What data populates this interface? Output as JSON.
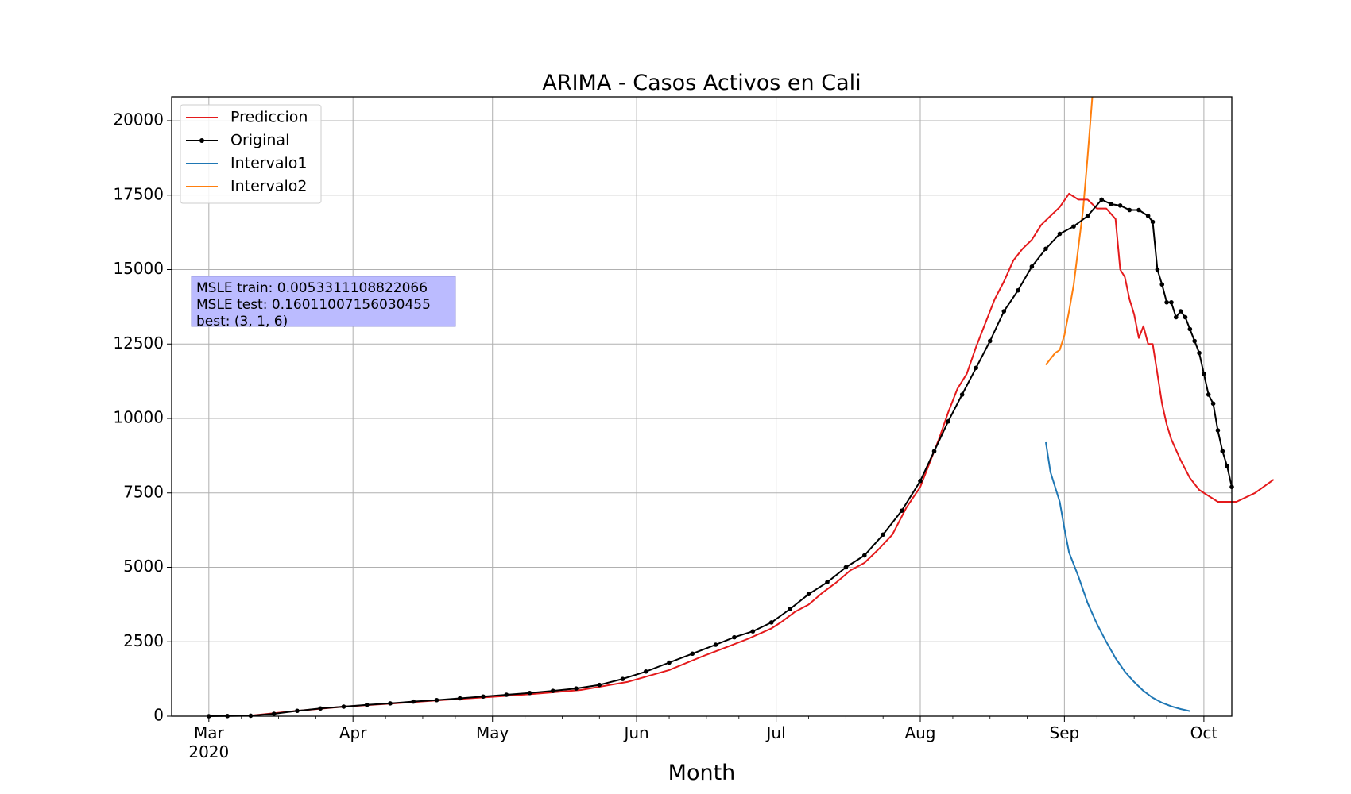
{
  "chart_data": {
    "type": "line",
    "title": "ARIMA - Casos Activos en Cali",
    "xlabel": "Month",
    "ylabel": "",
    "ylim": [
      0,
      20800
    ],
    "xlim": [
      "2020-02-22",
      "2020-10-07"
    ],
    "yticks": [
      0,
      2500,
      5000,
      7500,
      10000,
      12500,
      15000,
      17500,
      20000
    ],
    "xticks": [
      {
        "date": "2020-03-01",
        "label": "Mar",
        "sublabel": "2020"
      },
      {
        "date": "2020-04-01",
        "label": "Apr"
      },
      {
        "date": "2020-05-01",
        "label": "May"
      },
      {
        "date": "2020-06-01",
        "label": "Jun"
      },
      {
        "date": "2020-07-01",
        "label": "Jul"
      },
      {
        "date": "2020-08-01",
        "label": "Aug"
      },
      {
        "date": "2020-09-01",
        "label": "Sep"
      },
      {
        "date": "2020-10-01",
        "label": "Oct"
      }
    ],
    "grid": true,
    "legend": "top-left",
    "annotation": {
      "lines": [
        "MSLE train: 0.0053311108822066",
        "MSLE test: 0.16011007156030455",
        "best: (3, 1, 6)"
      ],
      "color": "#bbbbff"
    },
    "series": [
      {
        "name": "Prediccion",
        "color": "#e41a1c",
        "marker": false,
        "points": [
          [
            "2020-03-10",
            20
          ],
          [
            "2020-03-20",
            180
          ],
          [
            "2020-03-30",
            320
          ],
          [
            "2020-04-10",
            430
          ],
          [
            "2020-04-20",
            540
          ],
          [
            "2020-04-30",
            640
          ],
          [
            "2020-05-10",
            750
          ],
          [
            "2020-05-20",
            880
          ],
          [
            "2020-05-30",
            1150
          ],
          [
            "2020-06-08",
            1550
          ],
          [
            "2020-06-15",
            2000
          ],
          [
            "2020-06-20",
            2300
          ],
          [
            "2020-06-25",
            2600
          ],
          [
            "2020-06-30",
            2950
          ],
          [
            "2020-07-02",
            3150
          ],
          [
            "2020-07-05",
            3500
          ],
          [
            "2020-07-08",
            3750
          ],
          [
            "2020-07-11",
            4150
          ],
          [
            "2020-07-14",
            4500
          ],
          [
            "2020-07-17",
            4900
          ],
          [
            "2020-07-20",
            5150
          ],
          [
            "2020-07-23",
            5600
          ],
          [
            "2020-07-26",
            6100
          ],
          [
            "2020-07-29",
            7000
          ],
          [
            "2020-08-01",
            7700
          ],
          [
            "2020-08-03",
            8500
          ],
          [
            "2020-08-05",
            9300
          ],
          [
            "2020-08-07",
            10200
          ],
          [
            "2020-08-09",
            11000
          ],
          [
            "2020-08-11",
            11500
          ],
          [
            "2020-08-13",
            12400
          ],
          [
            "2020-08-15",
            13200
          ],
          [
            "2020-08-17",
            14000
          ],
          [
            "2020-08-19",
            14600
          ],
          [
            "2020-08-21",
            15300
          ],
          [
            "2020-08-23",
            15700
          ],
          [
            "2020-08-25",
            16000
          ],
          [
            "2020-08-27",
            16500
          ],
          [
            "2020-08-29",
            16800
          ],
          [
            "2020-08-31",
            17100
          ],
          [
            "2020-09-02",
            17550
          ],
          [
            "2020-09-04",
            17350
          ],
          [
            "2020-09-06",
            17350
          ],
          [
            "2020-09-08",
            17050
          ],
          [
            "2020-09-10",
            17050
          ],
          [
            "2020-09-12",
            16700
          ],
          [
            "2020-09-13",
            15000
          ],
          [
            "2020-09-14",
            14750
          ],
          [
            "2020-09-15",
            14000
          ],
          [
            "2020-09-16",
            13500
          ],
          [
            "2020-09-17",
            12700
          ],
          [
            "2020-09-18",
            13100
          ],
          [
            "2020-09-19",
            12500
          ],
          [
            "2020-09-20",
            12500
          ],
          [
            "2020-09-21",
            11500
          ],
          [
            "2020-09-22",
            10500
          ],
          [
            "2020-09-23",
            9800
          ],
          [
            "2020-09-24",
            9300
          ],
          [
            "2020-09-26",
            8600
          ],
          [
            "2020-09-28",
            8000
          ],
          [
            "2020-09-30",
            7600
          ],
          [
            "2020-10-04",
            7200
          ],
          [
            "2020-10-08",
            7200
          ],
          [
            "2020-10-12",
            7500
          ],
          [
            "2020-10-16",
            7950
          ]
        ]
      },
      {
        "name": "Original",
        "color": "#000000",
        "marker": true,
        "points": [
          [
            "2020-03-01",
            0
          ],
          [
            "2020-03-05",
            5
          ],
          [
            "2020-03-10",
            15
          ],
          [
            "2020-03-15",
            80
          ],
          [
            "2020-03-20",
            180
          ],
          [
            "2020-03-25",
            260
          ],
          [
            "2020-03-30",
            320
          ],
          [
            "2020-04-04",
            380
          ],
          [
            "2020-04-09",
            430
          ],
          [
            "2020-04-14",
            490
          ],
          [
            "2020-04-19",
            540
          ],
          [
            "2020-04-24",
            600
          ],
          [
            "2020-04-29",
            660
          ],
          [
            "2020-05-04",
            720
          ],
          [
            "2020-05-09",
            780
          ],
          [
            "2020-05-14",
            850
          ],
          [
            "2020-05-19",
            930
          ],
          [
            "2020-05-24",
            1050
          ],
          [
            "2020-05-29",
            1250
          ],
          [
            "2020-06-03",
            1500
          ],
          [
            "2020-06-08",
            1800
          ],
          [
            "2020-06-13",
            2100
          ],
          [
            "2020-06-18",
            2400
          ],
          [
            "2020-06-22",
            2650
          ],
          [
            "2020-06-26",
            2850
          ],
          [
            "2020-06-30",
            3150
          ],
          [
            "2020-07-04",
            3600
          ],
          [
            "2020-07-08",
            4100
          ],
          [
            "2020-07-12",
            4500
          ],
          [
            "2020-07-16",
            5000
          ],
          [
            "2020-07-20",
            5400
          ],
          [
            "2020-07-24",
            6100
          ],
          [
            "2020-07-28",
            6900
          ],
          [
            "2020-08-01",
            7900
          ],
          [
            "2020-08-04",
            8900
          ],
          [
            "2020-08-07",
            9900
          ],
          [
            "2020-08-10",
            10800
          ],
          [
            "2020-08-13",
            11700
          ],
          [
            "2020-08-16",
            12600
          ],
          [
            "2020-08-19",
            13600
          ],
          [
            "2020-08-22",
            14300
          ],
          [
            "2020-08-25",
            15100
          ],
          [
            "2020-08-28",
            15700
          ],
          [
            "2020-08-31",
            16200
          ],
          [
            "2020-09-03",
            16450
          ],
          [
            "2020-09-06",
            16800
          ],
          [
            "2020-09-09",
            17350
          ],
          [
            "2020-09-11",
            17200
          ],
          [
            "2020-09-13",
            17150
          ],
          [
            "2020-09-15",
            17000
          ],
          [
            "2020-09-17",
            17000
          ],
          [
            "2020-09-19",
            16800
          ],
          [
            "2020-09-20",
            16600
          ],
          [
            "2020-09-21",
            15000
          ],
          [
            "2020-09-22",
            14500
          ],
          [
            "2020-09-23",
            13900
          ],
          [
            "2020-09-24",
            13900
          ],
          [
            "2020-09-25",
            13400
          ],
          [
            "2020-09-26",
            13600
          ],
          [
            "2020-09-27",
            13400
          ],
          [
            "2020-09-28",
            13000
          ],
          [
            "2020-09-29",
            12600
          ],
          [
            "2020-09-30",
            12200
          ],
          [
            "2020-10-01",
            11500
          ],
          [
            "2020-10-02",
            10800
          ],
          [
            "2020-10-03",
            10500
          ],
          [
            "2020-10-04",
            9600
          ],
          [
            "2020-10-05",
            8900
          ],
          [
            "2020-10-06",
            8400
          ],
          [
            "2020-10-07",
            7700
          ]
        ]
      },
      {
        "name": "Intervalo1",
        "color": "#1f77b4",
        "marker": false,
        "points": [
          [
            "2020-08-28",
            9200
          ],
          [
            "2020-08-29",
            8200
          ],
          [
            "2020-08-31",
            7200
          ],
          [
            "2020-09-01",
            6300
          ],
          [
            "2020-09-02",
            5500
          ],
          [
            "2020-09-04",
            4700
          ],
          [
            "2020-09-06",
            3800
          ],
          [
            "2020-09-08",
            3100
          ],
          [
            "2020-09-10",
            2500
          ],
          [
            "2020-09-12",
            1950
          ],
          [
            "2020-09-14",
            1500
          ],
          [
            "2020-09-16",
            1150
          ],
          [
            "2020-09-18",
            850
          ],
          [
            "2020-09-20",
            620
          ],
          [
            "2020-09-22",
            450
          ],
          [
            "2020-09-24",
            330
          ],
          [
            "2020-09-26",
            240
          ],
          [
            "2020-09-28",
            170
          ]
        ]
      },
      {
        "name": "Intervalo2",
        "color": "#ff7f0e",
        "marker": false,
        "points": [
          [
            "2020-08-28",
            11800
          ],
          [
            "2020-08-29",
            12000
          ],
          [
            "2020-08-30",
            12200
          ],
          [
            "2020-08-31",
            12300
          ],
          [
            "2020-09-01",
            12800
          ],
          [
            "2020-09-02",
            13600
          ],
          [
            "2020-09-03",
            14500
          ],
          [
            "2020-09-05",
            17000
          ],
          [
            "2020-09-06",
            18800
          ],
          [
            "2020-09-07",
            20800
          ]
        ]
      }
    ]
  }
}
